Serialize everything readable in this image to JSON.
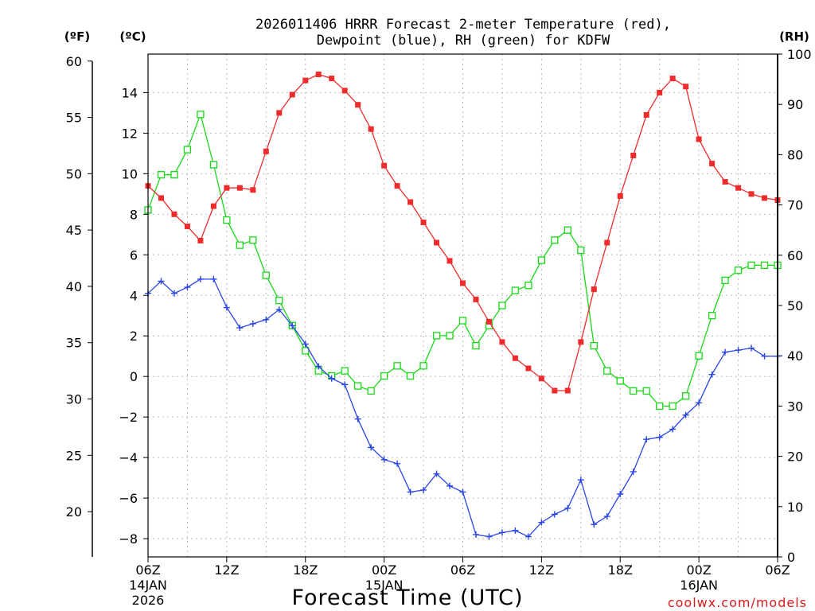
{
  "chart_data": {
    "type": "line",
    "title_line1": "2026011406 HRRR Forecast 2-meter Temperature (red),",
    "title_line2": "Dewpoint (blue), RH (green) for KDFW",
    "xlabel": "Forecast Time (UTC)",
    "watermark": "coolwx.com/models",
    "unit_labels": {
      "fahrenheit": "(ºF)",
      "celsius": "(ºC)",
      "rh": "(RH)"
    },
    "x_range": [
      0,
      48
    ],
    "x_ticks": [
      {
        "hour": 0,
        "label": "06Z",
        "sub1": "14JAN",
        "sub2": "2026"
      },
      {
        "hour": 6,
        "label": "12Z",
        "sub1": "",
        "sub2": ""
      },
      {
        "hour": 12,
        "label": "18Z",
        "sub1": "",
        "sub2": ""
      },
      {
        "hour": 18,
        "label": "00Z",
        "sub1": "15JAN",
        "sub2": ""
      },
      {
        "hour": 24,
        "label": "06Z",
        "sub1": "",
        "sub2": ""
      },
      {
        "hour": 30,
        "label": "12Z",
        "sub1": "",
        "sub2": ""
      },
      {
        "hour": 36,
        "label": "18Z",
        "sub1": "",
        "sub2": ""
      },
      {
        "hour": 42,
        "label": "00Z",
        "sub1": "16JAN",
        "sub2": ""
      },
      {
        "hour": 48,
        "label": "06Z",
        "sub1": "",
        "sub2": ""
      }
    ],
    "celsius_axis": {
      "range": [
        -8.9,
        15.9
      ],
      "ticks": [
        14,
        12,
        10,
        8,
        6,
        4,
        2,
        0,
        -2,
        -4,
        -6,
        -8
      ],
      "tick_labels": [
        "14",
        "12",
        "10",
        "8",
        "6",
        "4",
        "2",
        "0",
        "−2",
        "−4",
        "−6",
        "−8"
      ]
    },
    "fahrenheit_axis": {
      "ticks": [
        60,
        55,
        50,
        45,
        40,
        35,
        30,
        25,
        20
      ],
      "tick_labels": [
        "60",
        "55",
        "50",
        "45",
        "40",
        "35",
        "30",
        "25",
        "20"
      ]
    },
    "rh_axis": {
      "range": [
        0,
        100
      ],
      "ticks": [
        100,
        90,
        80,
        70,
        60,
        50,
        40,
        30,
        20,
        10,
        0
      ],
      "tick_labels": [
        "100",
        "90",
        "80",
        "70",
        "60",
        "50",
        "40",
        "30",
        "20",
        "10",
        "0"
      ]
    },
    "series": [
      {
        "name": "2-meter Temperature",
        "axis": "celsius",
        "color": "#ef2b2b",
        "marker": "filled-square",
        "values": [
          9.4,
          8.8,
          8.0,
          7.4,
          6.7,
          8.4,
          9.3,
          9.3,
          9.2,
          11.1,
          13.0,
          13.9,
          14.6,
          14.9,
          14.7,
          14.1,
          13.4,
          12.2,
          10.4,
          9.4,
          8.6,
          7.6,
          6.6,
          5.7,
          4.6,
          3.8,
          2.7,
          1.7,
          0.9,
          0.4,
          -0.1,
          -0.7,
          -0.7,
          1.7,
          4.3,
          6.6,
          8.9,
          10.9,
          12.9,
          14.0,
          14.7,
          14.3,
          11.7,
          10.5,
          9.6,
          9.3,
          9.0,
          8.8,
          8.7
        ]
      },
      {
        "name": "Dewpoint",
        "axis": "celsius",
        "color": "#2a45e6",
        "marker": "plus",
        "values": [
          4.1,
          4.7,
          4.1,
          4.4,
          4.8,
          4.8,
          3.4,
          2.4,
          2.6,
          2.8,
          3.3,
          2.5,
          1.6,
          0.5,
          -0.1,
          -0.4,
          -2.1,
          -3.5,
          -4.1,
          -4.3,
          -5.7,
          -5.6,
          -4.8,
          -5.4,
          -5.7,
          -7.8,
          -7.9,
          -7.7,
          -7.6,
          -7.9,
          -7.2,
          -6.8,
          -6.5,
          -5.1,
          -7.3,
          -6.9,
          -5.8,
          -4.7,
          -3.1,
          -3.0,
          -2.6,
          -1.9,
          -1.3,
          0.1,
          1.2,
          1.3,
          1.4,
          1.0,
          1.0
        ]
      },
      {
        "name": "RH",
        "axis": "rh",
        "color": "#18d818",
        "marker": "open-square",
        "values": [
          69,
          76,
          76,
          81,
          88,
          78,
          67,
          62,
          63,
          56,
          51,
          46,
          41,
          37,
          36,
          37,
          34,
          33,
          36,
          38,
          36,
          38,
          44,
          44,
          47,
          42,
          46,
          50,
          53,
          54,
          59,
          63,
          65,
          61,
          42,
          37,
          35,
          33,
          33,
          30,
          30,
          32,
          40,
          48,
          55,
          57,
          58,
          58,
          58
        ]
      }
    ]
  }
}
